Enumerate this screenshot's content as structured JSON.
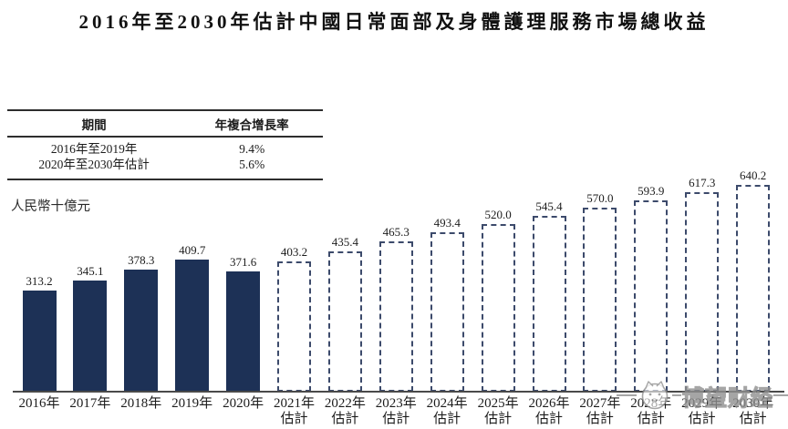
{
  "title": "2016年至2030年估計中國日常面部及身體護理服務市場總收益",
  "cagr_table": {
    "col_headers": [
      "期間",
      "年複合增長率"
    ],
    "rows": [
      {
        "period": "2016年至2019年",
        "cagr": "9.4%"
      },
      {
        "period": "2020年至2030年估計",
        "cagr": "5.6%"
      }
    ]
  },
  "unit_label": "人民幣十億元",
  "watermark": {
    "text": "博望财经",
    "logo": "cat-mascot-logo"
  },
  "colors": {
    "bar_solid": "#1d3156",
    "bar_dashed_border": "#3c4a6b",
    "axis": "#4a4a4a",
    "watermark_gray": "#8f8f8f"
  },
  "chart_data": {
    "type": "bar",
    "title": "2016年至2030年估計中國日常面部及身體護理服務市場總收益",
    "ylabel": "人民幣十億元",
    "categories": [
      "2016年",
      "2017年",
      "2018年",
      "2019年",
      "2020年",
      "2021年",
      "2022年",
      "2023年",
      "2024年",
      "2025年",
      "2026年",
      "2027年",
      "2028年",
      "2029年",
      "2030年"
    ],
    "estimate_label": "估計",
    "estimate_start_index": 5,
    "values": [
      313.2,
      345.1,
      378.3,
      409.7,
      371.6,
      403.2,
      435.4,
      465.3,
      493.4,
      520.0,
      545.4,
      570.0,
      593.9,
      617.3,
      640.2
    ],
    "value_labels": [
      "313.2",
      "345.1",
      "378.3",
      "409.7",
      "371.6",
      "403.2",
      "435.4",
      "465.3",
      "493.4",
      "520.0",
      "545.4",
      "570.0",
      "593.9",
      "617.3",
      "640.2"
    ],
    "ylim": [
      0,
      700
    ],
    "grid": false,
    "legend": null,
    "cagr_2016_2019": "9.4%",
    "cagr_2020_2030": "5.6%"
  }
}
